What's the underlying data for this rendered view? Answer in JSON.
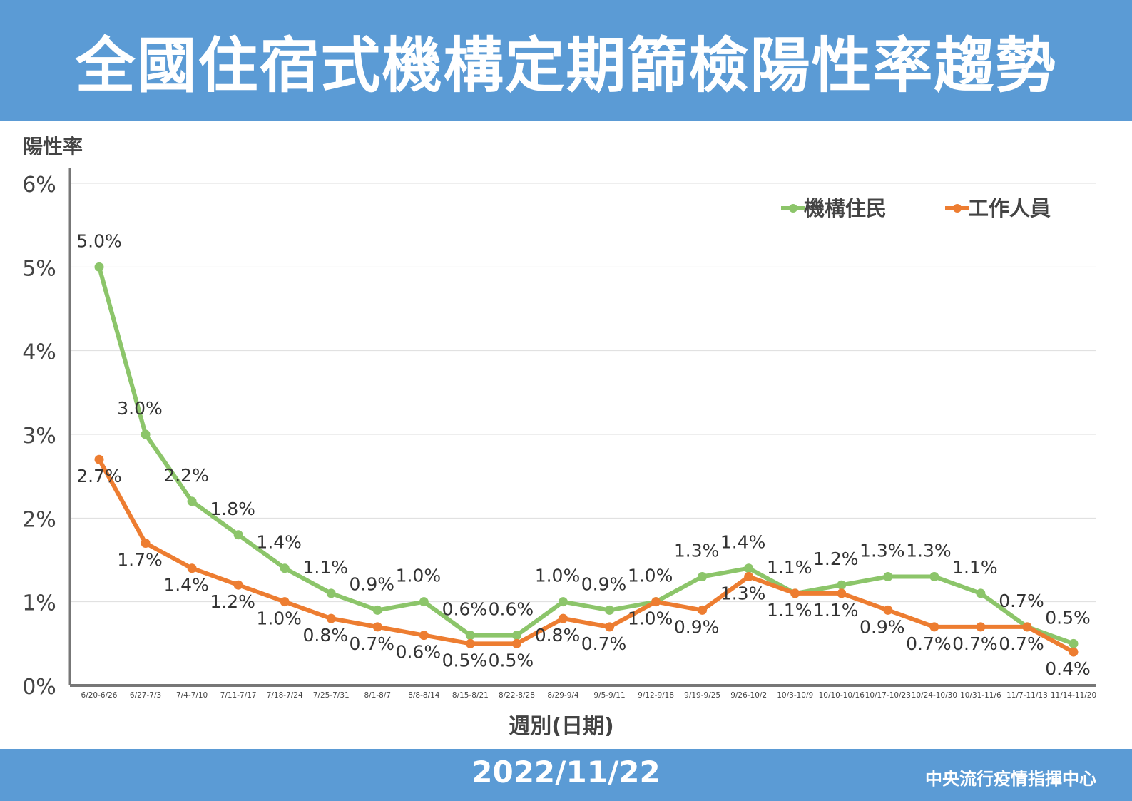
{
  "header": {
    "title": "全國住宿式機構定期篩檢陽性率趨勢"
  },
  "footer": {
    "date": "2022/11/22",
    "org": "中央流行疫情指揮中心"
  },
  "chart_data": {
    "type": "line",
    "ylabel": "陽性率",
    "xlabel": "週別(日期)",
    "ylim": [
      0,
      6
    ],
    "yticks": [
      "0%",
      "1%",
      "2%",
      "3%",
      "4%",
      "5%",
      "6%"
    ],
    "grid": true,
    "legend": "top-right",
    "categories": [
      "6/20-6/26",
      "6/27-7/3",
      "7/4-7/10",
      "7/11-7/17",
      "7/18-7/24",
      "7/25-7/31",
      "8/1-8/7",
      "8/8-8/14",
      "8/15-8/21",
      "8/22-8/28",
      "8/29-9/4",
      "9/5-9/11",
      "9/12-9/18",
      "9/19-9/25",
      "9/26-10/2",
      "10/3-10/9",
      "10/10-10/16",
      "10/17-10/23",
      "10/24-10/30",
      "10/31-11/6",
      "11/7-11/13",
      "11/14-11/20"
    ],
    "series": [
      {
        "name": "機構住民",
        "color": "#8cc56a",
        "values": [
          5.0,
          3.0,
          2.2,
          1.8,
          1.4,
          1.1,
          0.9,
          1.0,
          0.6,
          0.6,
          1.0,
          0.9,
          1.0,
          1.3,
          1.4,
          1.1,
          1.2,
          1.3,
          1.3,
          1.1,
          0.7,
          0.5
        ]
      },
      {
        "name": "工作人員",
        "color": "#ed7d31",
        "values": [
          2.7,
          1.7,
          1.4,
          1.2,
          1.0,
          0.8,
          0.7,
          0.6,
          0.5,
          0.5,
          0.8,
          0.7,
          1.0,
          0.9,
          1.3,
          1.1,
          1.1,
          0.9,
          0.7,
          0.7,
          0.7,
          0.4
        ]
      }
    ]
  }
}
